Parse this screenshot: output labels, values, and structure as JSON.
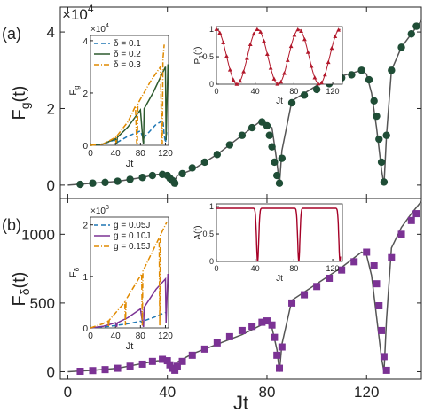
{
  "chart_data": {
    "type": "scatter",
    "shared": {
      "xlabel": "Jt",
      "xlim": [
        -3,
        142
      ],
      "xticks": [
        "0",
        "40",
        "80",
        "120"
      ]
    },
    "panels": [
      {
        "label": "(a)",
        "ylabel": "F",
        "ylabel_sub": "g",
        "ylabel_tail": "(t)",
        "ylim": [
          -0.35,
          4.65
        ],
        "yticks": [
          "0",
          "2",
          "4"
        ],
        "multiplier": "×10",
        "multiplier_exp": "4",
        "line_color": "#555555",
        "marker_color": "#1f4d36",
        "marker": "circle",
        "curve_x": [
          0,
          10,
          20,
          30,
          36,
          38,
          40,
          42,
          44,
          50,
          60,
          70,
          78,
          82,
          84,
          85,
          86,
          90,
          100,
          110,
          118,
          120,
          122,
          124,
          126,
          127,
          128,
          130,
          134,
          138,
          142
        ],
        "curve_y": [
          0,
          0.05,
          0.1,
          0.2,
          0.28,
          0.28,
          0.22,
          0.0,
          0.25,
          0.4,
          0.8,
          1.3,
          1.7,
          1.5,
          0.6,
          0.0,
          0.9,
          2.2,
          2.6,
          2.85,
          3.0,
          2.9,
          2.4,
          1.5,
          0.4,
          0.0,
          1.3,
          3.0,
          3.6,
          3.95,
          4.3
        ],
        "points_x": [
          5,
          10,
          15,
          20,
          25,
          30,
          34,
          38,
          40,
          41,
          42,
          43,
          46,
          50,
          55,
          60,
          65,
          70,
          74,
          78,
          80,
          81,
          82,
          83,
          84,
          85,
          86,
          90,
          95,
          100,
          105,
          110,
          114,
          118,
          121,
          123,
          124,
          125,
          126,
          127,
          128,
          130,
          134,
          138,
          140
        ],
        "points_y": [
          0.02,
          0.05,
          0.07,
          0.1,
          0.15,
          0.2,
          0.25,
          0.28,
          0.25,
          0.18,
          0.12,
          0.05,
          0.3,
          0.45,
          0.6,
          0.8,
          1.05,
          1.3,
          1.5,
          1.65,
          1.55,
          1.3,
          1.0,
          0.6,
          0.25,
          0.05,
          0.7,
          2.15,
          2.35,
          2.5,
          2.65,
          2.8,
          2.88,
          3.0,
          2.75,
          2.2,
          1.8,
          1.2,
          0.6,
          0.08,
          1.3,
          3.0,
          3.6,
          3.95,
          4.15
        ],
        "inset_left": {
          "ylabel": "F",
          "ylabel_sub": "g",
          "xlabel": "Jt",
          "multiplier": "×10",
          "multiplier_exp": "4",
          "xlim": [
            0,
            125
          ],
          "ylim": [
            0,
            4.2
          ],
          "xticks": [
            "0",
            "40",
            "80",
            "120"
          ],
          "yticks": [
            "0",
            "2",
            "4"
          ],
          "series": [
            {
              "name": "δ = 0.1",
              "color": "#1f77b4",
              "dash": "5,3",
              "x": [
                0,
                20,
                38,
                40,
                42,
                60,
                80,
                84,
                85,
                86,
                105,
                116,
                118,
                120,
                122
              ],
              "y": [
                0,
                0.05,
                0.2,
                0.15,
                0.1,
                0.35,
                0.55,
                0.3,
                0.1,
                0.3,
                0.8,
                0.95,
                0.4,
                0.1,
                0.5
              ]
            },
            {
              "name": "δ = 0.2",
              "color": "#2d5a2e",
              "dash": "",
              "x": [
                0,
                20,
                40,
                42,
                43,
                60,
                80,
                84,
                85,
                86,
                100,
                112,
                118,
                120,
                121,
                124
              ],
              "y": [
                0,
                0.05,
                0.25,
                0.05,
                0.3,
                0.7,
                1.35,
                0.2,
                0.05,
                1.4,
                2.0,
                2.6,
                2.9,
                3.0,
                0.2,
                3.1
              ]
            },
            {
              "name": "δ = 0.3",
              "color": "#e08a00",
              "dash": "6,2,1,2",
              "x": [
                0,
                20,
                40,
                41,
                42,
                60,
                72,
                74,
                75,
                76,
                95,
                112,
                114,
                115,
                116,
                118
              ],
              "y": [
                0,
                0.05,
                0.3,
                0.1,
                0.35,
                0.9,
                1.5,
                0.1,
                0.02,
                1.6,
                2.4,
                3.0,
                0.2,
                0.05,
                3.3,
                3.85
              ]
            }
          ]
        },
        "inset_right": {
          "ylabel": "P",
          "ylabel_sub": "1",
          "ylabel_tail": "(t)",
          "xlabel": "Jt",
          "xlim": [
            0,
            130
          ],
          "ylim": [
            0,
            1.05
          ],
          "xticks": [
            "0",
            "40",
            "80",
            "120"
          ],
          "yticks": [
            "0",
            "0.5",
            "1"
          ],
          "color": "#b2182b",
          "period": 42.5
        }
      },
      {
        "label": "(b)",
        "ylabel": "F",
        "ylabel_sub": "δ",
        "ylabel_tail": "(t)",
        "ylim": [
          -55,
          1260
        ],
        "yticks": [
          "0",
          "500",
          "1000"
        ],
        "line_color": "#555555",
        "marker_color": "#7b3294",
        "marker": "square",
        "curve_x": [
          0,
          10,
          20,
          30,
          36,
          38,
          40,
          42,
          44,
          50,
          60,
          70,
          80,
          82,
          84,
          85,
          86,
          90,
          100,
          110,
          118,
          120,
          122,
          124,
          126,
          127,
          128,
          130,
          134,
          138,
          142
        ],
        "curve_y": [
          0,
          10,
          25,
          60,
          80,
          80,
          70,
          0,
          70,
          130,
          200,
          270,
          360,
          320,
          160,
          0,
          200,
          520,
          640,
          760,
          870,
          850,
          700,
          400,
          100,
          0,
          380,
          900,
          1050,
          1150,
          1240
        ],
        "points_x": [
          5,
          10,
          15,
          20,
          25,
          30,
          34,
          38,
          40,
          41,
          42,
          43,
          44,
          46,
          50,
          55,
          60,
          65,
          70,
          74,
          78,
          80,
          82,
          83,
          84,
          85,
          86,
          90,
          95,
          100,
          105,
          110,
          115,
          120,
          123,
          124,
          125,
          126,
          127,
          128,
          130,
          134,
          138,
          140
        ],
        "points_y": [
          3,
          8,
          15,
          25,
          40,
          55,
          75,
          90,
          80,
          50,
          25,
          10,
          40,
          75,
          120,
          165,
          210,
          255,
          300,
          330,
          360,
          370,
          340,
          250,
          120,
          25,
          180,
          500,
          560,
          620,
          680,
          740,
          800,
          870,
          770,
          640,
          480,
          300,
          110,
          10,
          830,
          1000,
          1100,
          1150
        ],
        "inset_left": {
          "ylabel": "F",
          "ylabel_sub": "δ",
          "xlabel": "Jt",
          "multiplier": "×10",
          "multiplier_exp": "3",
          "xlim": [
            0,
            125
          ],
          "ylim": [
            0,
            2.15
          ],
          "xticks": [
            "0",
            "40",
            "80",
            "120"
          ],
          "yticks": [
            "0",
            "1",
            "2"
          ],
          "series": [
            {
              "name": "g = 0.05J",
              "color": "#1f77b4",
              "dash": "5,3",
              "x": [
                0,
                30,
                60,
                80,
                84,
                86,
                100,
                120
              ],
              "y": [
                0,
                0.03,
                0.08,
                0.13,
                0.1,
                0.14,
                0.2,
                0.3
              ]
            },
            {
              "name": "g = 0.10J",
              "color": "#7b3294",
              "dash": "",
              "x": [
                0,
                20,
                40,
                42,
                43,
                60,
                80,
                84,
                85,
                86,
                105,
                120,
                121,
                124
              ],
              "y": [
                0,
                0.03,
                0.1,
                0.02,
                0.1,
                0.2,
                0.37,
                0.05,
                0.02,
                0.4,
                0.75,
                0.95,
                0.1,
                1.05
              ]
            },
            {
              "name": "g = 0.15J",
              "color": "#e08a00",
              "dash": "6,2,1,2",
              "x": [
                0,
                20,
                28,
                29,
                30,
                55,
                56,
                57,
                82,
                83,
                84,
                100,
                110,
                111,
                112,
                122
              ],
              "y": [
                0,
                0.08,
                0.15,
                0.02,
                0.15,
                0.5,
                0.05,
                0.55,
                1.05,
                0.05,
                1.1,
                1.5,
                1.75,
                0.05,
                1.8,
                2.05
              ]
            }
          ]
        },
        "inset_right": {
          "ylabel": "A",
          "ylabel_sub": "",
          "ylabel_tail": "(t)",
          "xlabel": "Jt",
          "xlim": [
            0,
            130
          ],
          "ylim": [
            0,
            1.05
          ],
          "xticks": [
            "0",
            "40",
            "80",
            "120"
          ],
          "yticks": [
            "0",
            "0.5",
            "1"
          ],
          "color": "#a50026",
          "dips": [
            42.5,
            85,
            127.5
          ]
        }
      }
    ]
  }
}
